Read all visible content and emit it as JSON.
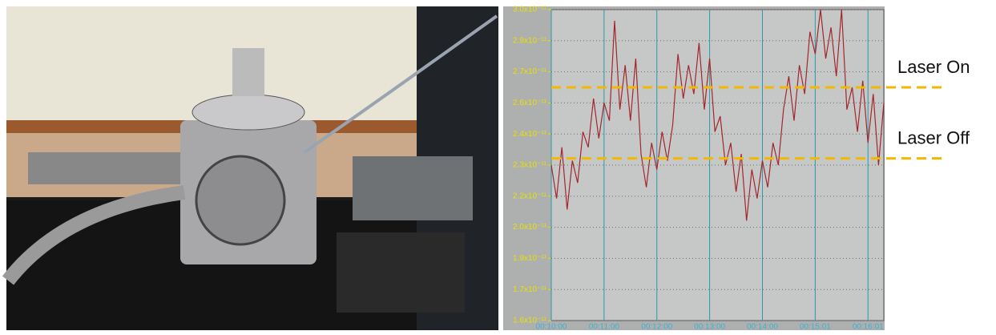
{
  "chart_data": {
    "type": "line",
    "x": [
      0,
      6,
      12,
      18,
      24,
      30,
      36,
      42,
      48,
      54,
      60,
      66,
      72,
      78,
      84,
      90,
      96,
      102,
      108,
      114,
      120,
      126,
      132,
      138,
      144,
      150,
      156,
      162,
      168,
      174,
      180,
      186,
      192,
      198,
      204,
      210,
      216,
      222,
      228,
      234,
      240,
      246,
      252,
      258,
      264,
      270,
      276,
      282,
      288,
      294,
      300,
      306,
      312,
      318,
      324,
      330,
      336,
      342,
      348,
      354,
      360,
      366,
      372,
      378
    ],
    "series": [
      {
        "color": "#a3262c",
        "values": [
          2.3e-11,
          2.15e-11,
          2.38e-11,
          2.1e-11,
          2.32e-11,
          2.22e-11,
          2.45e-11,
          2.38e-11,
          2.6e-11,
          2.42e-11,
          2.58e-11,
          2.5e-11,
          2.95e-11,
          2.55e-11,
          2.75e-11,
          2.5e-11,
          2.78e-11,
          2.35e-11,
          2.2e-11,
          2.4e-11,
          2.28e-11,
          2.45e-11,
          2.32e-11,
          2.48e-11,
          2.8e-11,
          2.6e-11,
          2.75e-11,
          2.62e-11,
          2.85e-11,
          2.55e-11,
          2.78e-11,
          2.45e-11,
          2.52e-11,
          2.3e-11,
          2.4e-11,
          2.18e-11,
          2.35e-11,
          2.05e-11,
          2.28e-11,
          2.15e-11,
          2.32e-11,
          2.2e-11,
          2.4e-11,
          2.3e-11,
          2.55e-11,
          2.7e-11,
          2.5e-11,
          2.75e-11,
          2.62e-11,
          2.9e-11,
          2.8e-11,
          3e-11,
          2.78e-11,
          2.92e-11,
          2.7e-11,
          3e-11,
          2.55e-11,
          2.65e-11,
          2.45e-11,
          2.68e-11,
          2.4e-11,
          2.62e-11,
          2.3e-11,
          2.58e-11
        ]
      }
    ],
    "xlim": [
      0,
      378
    ],
    "xticks": [
      {
        "value": 0,
        "label": "00:10:00"
      },
      {
        "value": 60,
        "label": "00:11:00"
      },
      {
        "value": 120,
        "label": "00:12:00"
      },
      {
        "value": 180,
        "label": "00:13:00"
      },
      {
        "value": 240,
        "label": "00:14:00"
      },
      {
        "value": 300,
        "label": "00:15:01"
      },
      {
        "value": 360,
        "label": "00:16:01"
      }
    ],
    "ylim": [
      1.6e-11,
      3e-11
    ],
    "yticks": [
      {
        "value": 1.6e-11,
        "label": "1.6x10⁻¹¹"
      },
      {
        "value": 1.74e-11,
        "label": "1.7x10⁻¹¹"
      },
      {
        "value": 1.88e-11,
        "label": "1.9x10⁻¹¹"
      },
      {
        "value": 2.02e-11,
        "label": "2.0x10⁻¹¹"
      },
      {
        "value": 2.16e-11,
        "label": "2.2x10⁻¹¹"
      },
      {
        "value": 2.3e-11,
        "label": "2.3x10⁻¹¹"
      },
      {
        "value": 2.44e-11,
        "label": "2.4x10⁻¹¹"
      },
      {
        "value": 2.58e-11,
        "label": "2.6x10⁻¹¹"
      },
      {
        "value": 2.72e-11,
        "label": "2.7x10⁻¹¹"
      },
      {
        "value": 2.86e-11,
        "label": "2.9x10⁻¹¹"
      },
      {
        "value": 3e-11,
        "label": "3.0x10⁻¹¹"
      }
    ],
    "grid": true,
    "annotations": [
      {
        "text": "Laser On",
        "value": 2.65e-11,
        "color": "#f5b800"
      },
      {
        "text": "Laser Off",
        "value": 2.33e-11,
        "color": "#f5b800"
      }
    ]
  }
}
